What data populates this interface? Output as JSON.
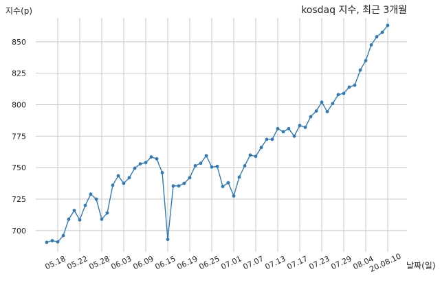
{
  "chart_data": {
    "type": "line",
    "title": "kosdaq 지수, 최근 3개월",
    "ylabel": "지수(p)",
    "xlabel": "날짜(일)",
    "ylim": [
      683,
      869
    ],
    "yticks": [
      700,
      725,
      750,
      775,
      800,
      825,
      850
    ],
    "grid": true,
    "color": "#2e7ab6",
    "xtick_labels": [
      "05.18",
      "05.22",
      "05.28",
      "06.03",
      "06.09",
      "06.15",
      "06.19",
      "06.25",
      "07.01",
      "07.07",
      "07.13",
      "07.17",
      "07.23",
      "07.29",
      "08.04",
      "20.08.10"
    ],
    "xtick_positions": [
      2,
      6,
      10,
      14,
      18,
      22,
      26,
      30,
      34,
      38,
      42,
      46,
      50,
      54,
      58,
      62
    ],
    "values": [
      690.7,
      692.0,
      691.0,
      696.0,
      709.0,
      716.0,
      708.5,
      720.0,
      729.0,
      725.0,
      709.0,
      714.0,
      736.0,
      743.5,
      737.5,
      742.0,
      749.5,
      753.0,
      754.0,
      758.5,
      757.0,
      746.0,
      693.0,
      735.5,
      735.5,
      737.5,
      742.0,
      751.5,
      753.5,
      759.5,
      750.5,
      751.0,
      735.0,
      738.0,
      727.5,
      742.5,
      751.5,
      760.0,
      759.0,
      766.0,
      772.5,
      772.5,
      781.0,
      778.5,
      781.0,
      775.0,
      783.5,
      782.0,
      790.5,
      795.0,
      802.0,
      794.5,
      801.0,
      808.0,
      809.0,
      814.0,
      815.5,
      827.5,
      835.0,
      847.5,
      854.0,
      857.5,
      863.0
    ]
  }
}
